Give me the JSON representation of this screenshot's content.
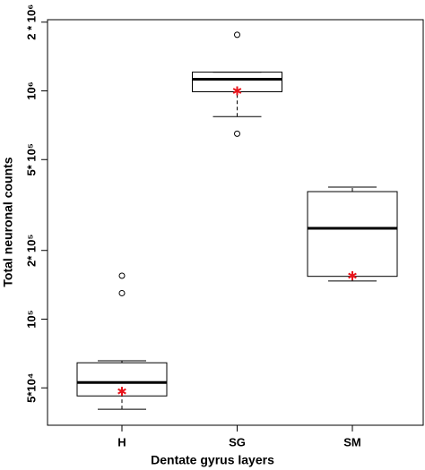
{
  "chart_data": {
    "type": "box",
    "x_label": "Dentate gyrus layers",
    "y_label": "Total neuronal counts",
    "log_scale": true,
    "ylim": [
      34300,
      2050000
    ],
    "yticks": [
      {
        "value": 50000,
        "label": "5*10⁴"
      },
      {
        "value": 100000,
        "label": "10⁵"
      },
      {
        "value": 200000,
        "label": "2* 10⁵"
      },
      {
        "value": 500000,
        "label": "5* 10⁵"
      },
      {
        "value": 1000000,
        "label": "10⁶"
      },
      {
        "value": 2000000,
        "label": "2 * 10⁶"
      }
    ],
    "categories": [
      "H",
      "SG",
      "SM"
    ],
    "mean_color": "#e8141b",
    "boxes": [
      {
        "whisker_low": 40300,
        "q1": 46100,
        "median": 52800,
        "q3": 64400,
        "whisker_high": 65700,
        "outliers": [
          130000,
          155000
        ],
        "mean": 48300
      },
      {
        "whisker_low": 771000,
        "q1": 991000,
        "median": 1125000,
        "q3": 1208000,
        "whisker_high": 1208000,
        "outliers": [
          1760000,
          649000
        ],
        "mean": 1000000
      },
      {
        "whisker_low": 147000,
        "q1": 154000,
        "median": 250000,
        "q3": 362000,
        "whisker_high": 379000,
        "outliers": [],
        "mean": 155000
      }
    ]
  }
}
